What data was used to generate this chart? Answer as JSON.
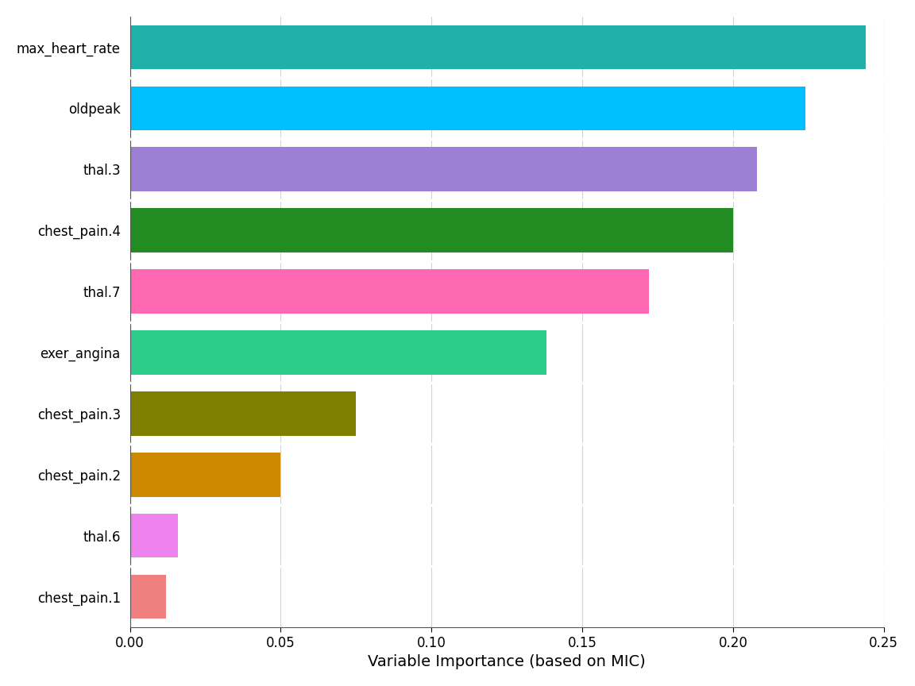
{
  "categories": [
    "chest_pain.1",
    "thal.6",
    "chest_pain.2",
    "chest_pain.3",
    "exer_angina",
    "thal.7",
    "chest_pain.4",
    "thal.3",
    "oldpeak",
    "max_heart_rate"
  ],
  "values": [
    0.012,
    0.016,
    0.05,
    0.075,
    0.138,
    0.172,
    0.2,
    0.208,
    0.224,
    0.244
  ],
  "colors": [
    "#F08080",
    "#EE82EE",
    "#CC8800",
    "#808000",
    "#2ECC8A",
    "#FF69B4",
    "#228B22",
    "#9B80D4",
    "#00BFFF",
    "#20B2AA"
  ],
  "xlabel": "Variable Importance (based on MIC)",
  "xlim": [
    0,
    0.25
  ],
  "xticks": [
    0.0,
    0.05,
    0.1,
    0.15,
    0.2,
    0.25
  ],
  "plot_bg": "#FFFFFF",
  "fig_bg": "#FFFFFF",
  "grid_color": "#D3D3D3",
  "bar_height": 0.72,
  "xlabel_fontsize": 14,
  "tick_fontsize": 12,
  "label_fontsize": 12
}
